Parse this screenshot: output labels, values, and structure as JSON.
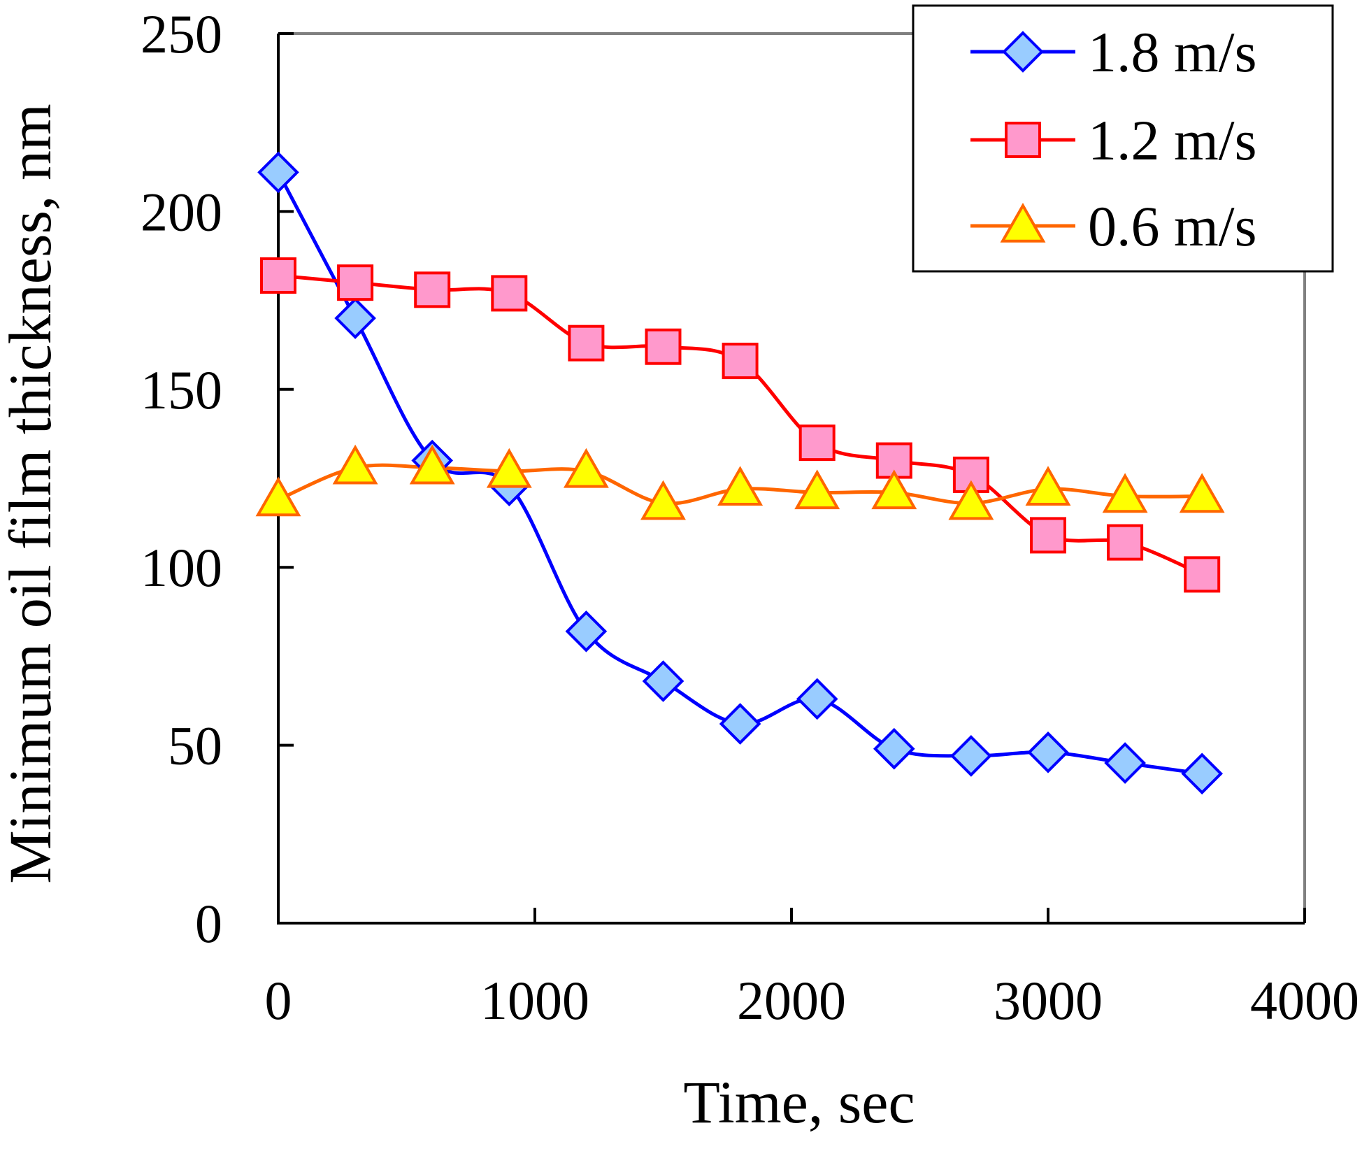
{
  "chart_data": {
    "type": "line",
    "title": "",
    "xlabel": "Time, sec",
    "ylabel": "Minimum oil film thickness, nm",
    "xlim": [
      0,
      4000
    ],
    "ylim": [
      0,
      250
    ],
    "x_ticks": [
      0,
      1000,
      2000,
      3000,
      4000
    ],
    "x_tick_labels": [
      "0",
      "1000",
      "2000",
      "3000",
      "4000"
    ],
    "y_ticks": [
      0,
      50,
      100,
      150,
      200,
      250
    ],
    "y_tick_labels": [
      "0",
      "50",
      "100",
      "150",
      "200",
      "250"
    ],
    "grid": false,
    "legend_position": "top-right",
    "x": [
      0,
      300,
      600,
      900,
      1200,
      1500,
      1800,
      2100,
      2400,
      2700,
      3000,
      3300,
      3600
    ],
    "series": [
      {
        "name": "1.8 m/s",
        "marker": "diamond",
        "line_color": "#0000ff",
        "marker_fill": "#99ccff",
        "marker_stroke": "#0000ff",
        "values": [
          211,
          170,
          130,
          123,
          82,
          68,
          56,
          63,
          49,
          47,
          48,
          45,
          42
        ]
      },
      {
        "name": "1.2 m/s",
        "marker": "square",
        "line_color": "#ff0000",
        "marker_fill": "#ff99cc",
        "marker_stroke": "#ff0000",
        "values": [
          182,
          180,
          178,
          177,
          163,
          162,
          158,
          135,
          130,
          126,
          109,
          107,
          98
        ]
      },
      {
        "name": "0.6 m/s",
        "marker": "triangle",
        "line_color": "#ff6600",
        "marker_fill": "#ffff00",
        "marker_stroke": "#ff6600",
        "values": [
          119,
          128,
          128,
          127,
          127,
          118,
          122,
          121,
          121,
          118,
          122,
          120,
          120
        ]
      }
    ]
  }
}
